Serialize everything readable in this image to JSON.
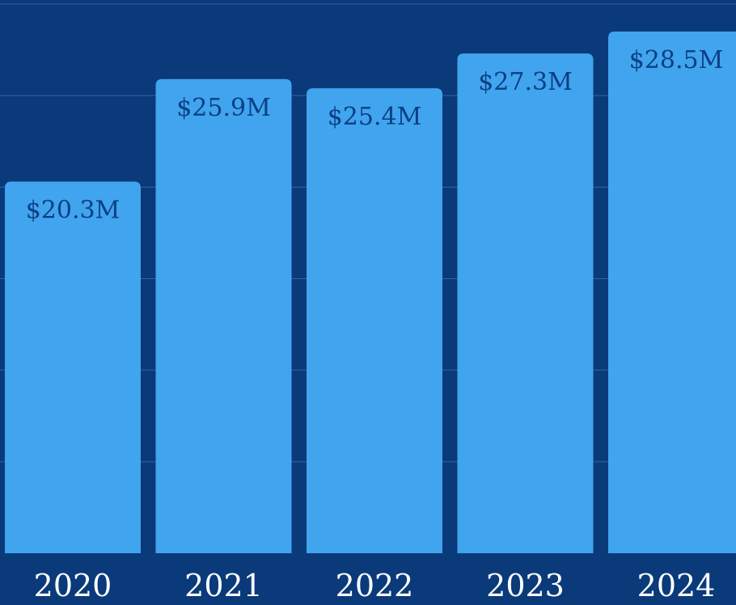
{
  "chart_data": {
    "type": "bar",
    "categories": [
      "2020",
      "2021",
      "2022",
      "2023",
      "2024"
    ],
    "values": [
      20.3,
      25.9,
      25.4,
      27.3,
      28.5
    ],
    "data_labels": [
      "$20.3M",
      "$25.9M",
      "$25.4M",
      "$27.3M",
      "$28.5M"
    ],
    "ylim": [
      0,
      30
    ],
    "grid": true,
    "colors": {
      "background": "#0a3a7a",
      "bar": "#41a4ee",
      "data_label": "#0b3f84",
      "tick_label": "#ffffff",
      "grid": "#4f86c6"
    }
  }
}
